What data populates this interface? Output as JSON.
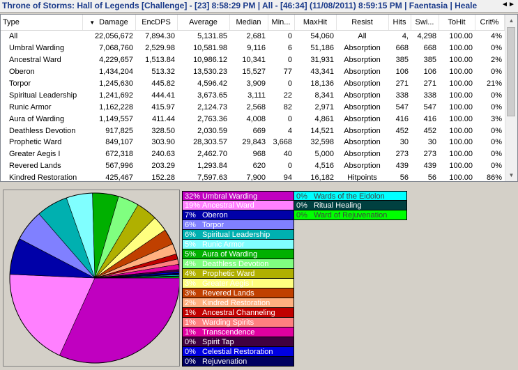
{
  "title": "Throne of Storms: Hall of Legends [Challenge] - [23] 8:58:29 PM | All - [46:34] (11/08/2011) 8:59:15 PM | Faentasia | Heale",
  "nav": {
    "left": "◄",
    "right": "►"
  },
  "table": {
    "columns": [
      "Type",
      "Damage",
      "EncDPS",
      "Average",
      "Median",
      "Min...",
      "MaxHit",
      "Resist",
      "Hits",
      "Swi...",
      "ToHit",
      "Crit%"
    ],
    "rows": [
      [
        "All",
        "22,056,672",
        "7,894.30",
        "5,131.85",
        "2,681",
        "0",
        "54,060",
        "All",
        "4,",
        "4,298",
        "100.00",
        "4%"
      ],
      [
        "Umbral Warding",
        "7,068,760",
        "2,529.98",
        "10,581.98",
        "9,116",
        "6",
        "51,186",
        "Absorption",
        "668",
        "668",
        "100.00",
        "0%"
      ],
      [
        "Ancestral Ward",
        "4,229,657",
        "1,513.84",
        "10,986.12",
        "10,341",
        "0",
        "31,931",
        "Absorption",
        "385",
        "385",
        "100.00",
        "2%"
      ],
      [
        "Oberon",
        "1,434,204",
        "513.32",
        "13,530.23",
        "15,527",
        "77",
        "43,341",
        "Absorption",
        "106",
        "106",
        "100.00",
        "0%"
      ],
      [
        "Torpor",
        "1,245,630",
        "445.82",
        "4,596.42",
        "3,909",
        "0",
        "18,136",
        "Absorption",
        "271",
        "271",
        "100.00",
        "21%"
      ],
      [
        "Spiritual Leadership",
        "1,241,692",
        "444.41",
        "3,673.65",
        "3,111",
        "22",
        "8,341",
        "Absorption",
        "338",
        "338",
        "100.00",
        "0%"
      ],
      [
        "Runic Armor",
        "1,162,228",
        "415.97",
        "2,124.73",
        "2,568",
        "82",
        "2,971",
        "Absorption",
        "547",
        "547",
        "100.00",
        "0%"
      ],
      [
        "Aura of Warding",
        "1,149,557",
        "411.44",
        "2,763.36",
        "4,008",
        "0",
        "4,861",
        "Absorption",
        "416",
        "416",
        "100.00",
        "3%"
      ],
      [
        "Deathless Devotion",
        "917,825",
        "328.50",
        "2,030.59",
        "669",
        "4",
        "14,521",
        "Absorption",
        "452",
        "452",
        "100.00",
        "0%"
      ],
      [
        "Prophetic Ward",
        "849,107",
        "303.90",
        "28,303.57",
        "29,843",
        "3,668",
        "32,598",
        "Absorption",
        "30",
        "30",
        "100.00",
        "0%"
      ],
      [
        "Greater  Aegis I",
        "672,318",
        "240.63",
        "2,462.70",
        "968",
        "40",
        "5,000",
        "Absorption",
        "273",
        "273",
        "100.00",
        "0%"
      ],
      [
        "Revered Lands",
        "567,996",
        "203.29",
        "1,293.84",
        "620",
        "0",
        "4,516",
        "Absorption",
        "439",
        "439",
        "100.00",
        "0%"
      ],
      [
        "Kindred Restoration",
        "425,467",
        "152.28",
        "7,597.63",
        "7,900",
        "94",
        "16,182",
        "Hitpoints",
        "56",
        "56",
        "100.00",
        "86%"
      ]
    ]
  },
  "legend1": [
    {
      "pct": "32%",
      "label": "Umbral Warding",
      "color": "#c000c0",
      "text": "#ffffff"
    },
    {
      "pct": "19%",
      "label": "Ancestral Ward",
      "color": "#ff80ff",
      "text": "#ffffff"
    },
    {
      "pct": "7%",
      "label": "Oberon",
      "color": "#0000a8",
      "text": "#ffffff"
    },
    {
      "pct": "6%",
      "label": "Torpor",
      "color": "#8080ff",
      "text": "#ffffff"
    },
    {
      "pct": "6%",
      "label": "Spiritual Leadership",
      "color": "#00b0b0",
      "text": "#ffffff"
    },
    {
      "pct": "5%",
      "label": "Runic Armor",
      "color": "#80ffff",
      "text": "#ffffff"
    },
    {
      "pct": "5%",
      "label": "Aura of Warding",
      "color": "#00b000",
      "text": "#ffffff"
    },
    {
      "pct": "4%",
      "label": "Deathless Devotion",
      "color": "#80ff80",
      "text": "#ffffff"
    },
    {
      "pct": "4%",
      "label": "Prophetic Ward",
      "color": "#b0b000",
      "text": "#ffffff"
    },
    {
      "pct": "3%",
      "label": "Greater  Aegis I",
      "color": "#ffff80",
      "text": "#ffffff"
    },
    {
      "pct": "3%",
      "label": "Revered Lands",
      "color": "#c04000",
      "text": "#ffffff"
    },
    {
      "pct": "2%",
      "label": "Kindred Restoration",
      "color": "#ffb080",
      "text": "#ffffff"
    },
    {
      "pct": "1%",
      "label": "Ancestral Channeling",
      "color": "#c00000",
      "text": "#ffffff"
    },
    {
      "pct": "1%",
      "label": "Warding Spirits",
      "color": "#ff8080",
      "text": "#ffffff"
    },
    {
      "pct": "1%",
      "label": "Transcendence",
      "color": "#e000a0",
      "text": "#ffffff"
    },
    {
      "pct": "0%",
      "label": "Spirit Tap",
      "color": "#400040",
      "text": "#ffffff"
    },
    {
      "pct": "0%",
      "label": "Celestial Restoration",
      "color": "#0000e0",
      "text": "#ffffff"
    },
    {
      "pct": "0%",
      "label": "Rejuvenation",
      "color": "#000060",
      "text": "#ffffff"
    }
  ],
  "legend2": [
    {
      "pct": "0%",
      "label": "Wards of the Eidolon",
      "color": "#00ffff",
      "text": "#404040"
    },
    {
      "pct": "0%",
      "label": "Ritual Healing",
      "color": "#004040",
      "text": "#ffffff"
    },
    {
      "pct": "0%",
      "label": "Ward of Rejuvenation",
      "color": "#00ff00",
      "text": "#404040"
    }
  ],
  "pie": {
    "values": [
      32,
      19,
      7,
      6,
      6,
      5,
      5,
      4,
      4,
      3,
      3,
      2,
      1,
      1,
      1,
      0.4,
      0.3,
      0.3,
      0.2,
      0.2,
      0.2
    ],
    "colors": [
      "#c000c0",
      "#ff80ff",
      "#0000a8",
      "#8080ff",
      "#00b0b0",
      "#80ffff",
      "#00b000",
      "#80ff80",
      "#b0b000",
      "#ffff80",
      "#c04000",
      "#ffb080",
      "#c00000",
      "#ff8080",
      "#e000a0",
      "#400040",
      "#0000e0",
      "#000060",
      "#00ffff",
      "#004040",
      "#00ff00"
    ]
  }
}
